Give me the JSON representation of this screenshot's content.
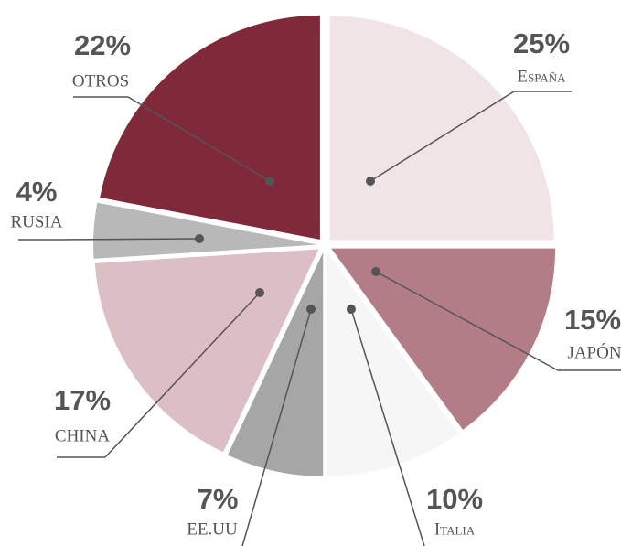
{
  "chart_data": {
    "type": "pie",
    "categories": [
      "España",
      "JAPÓN",
      "Italia",
      "EE.UU",
      "CHINA",
      "RUSIA",
      "OTROS"
    ],
    "values": [
      25,
      15,
      10,
      7,
      17,
      4,
      22
    ],
    "value_labels": [
      "25%",
      "15%",
      "10%",
      "7%",
      "17%",
      "4%",
      "22%"
    ],
    "colors": [
      "#f0e4e6",
      "#b27d87",
      "#f6f6f6",
      "#a6a6a6",
      "#dcbfc5",
      "#b8b8b8",
      "#80293a"
    ]
  }
}
